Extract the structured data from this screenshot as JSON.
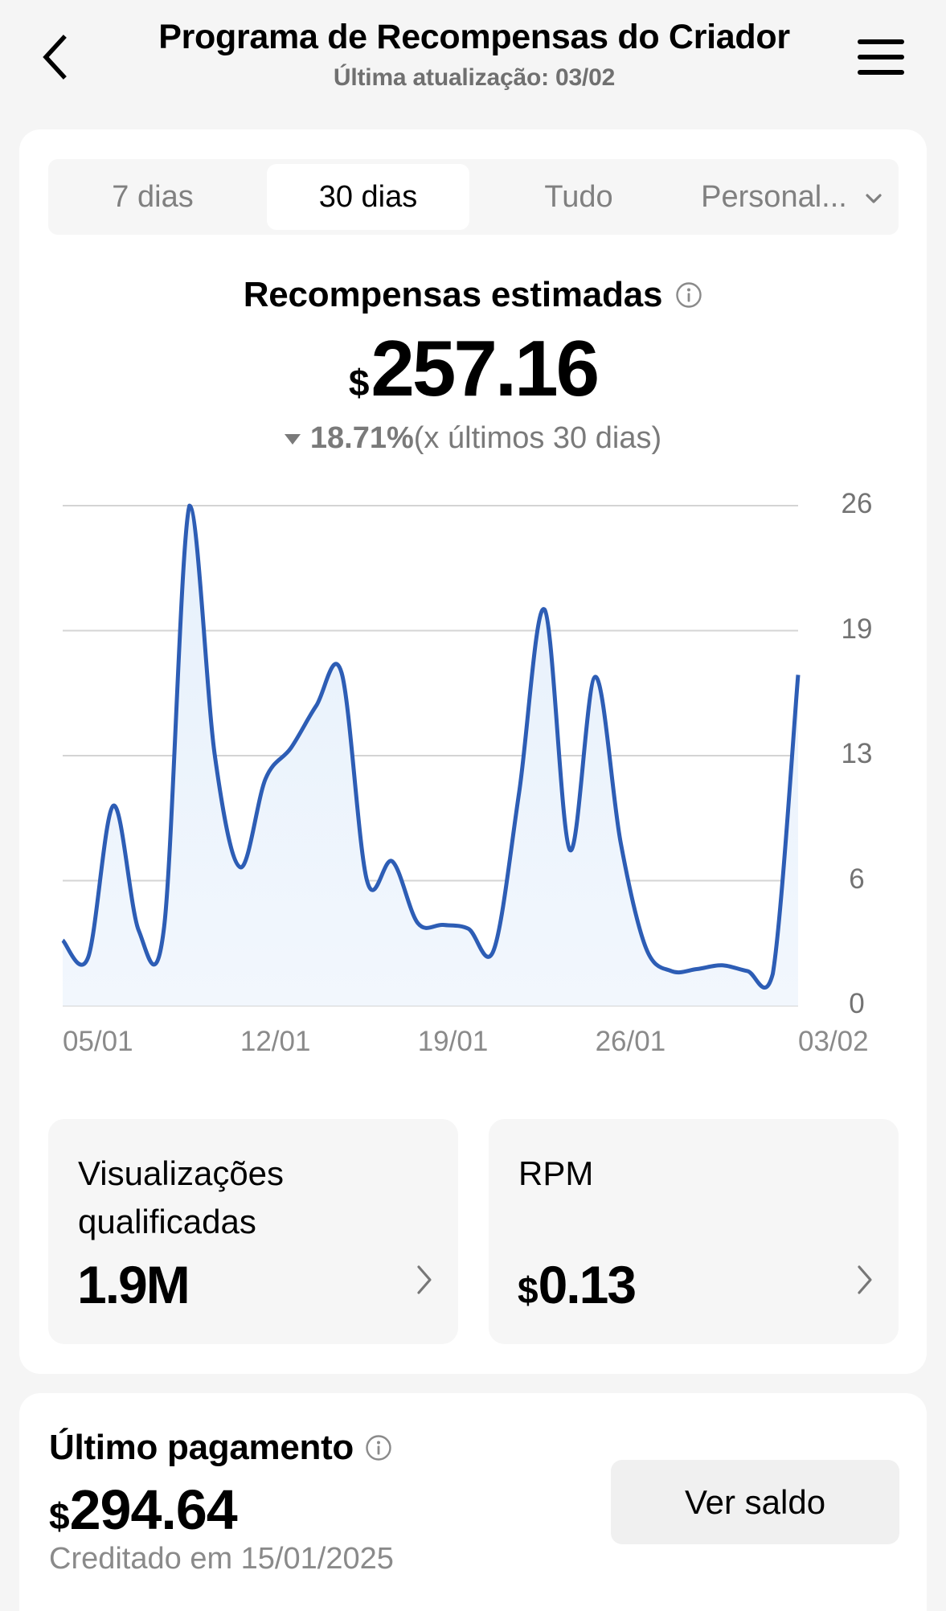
{
  "header": {
    "title": "Programa de Recompensas do Criador",
    "subtitle": "Última atualização: 03/02",
    "back_icon": "chevron-left-icon",
    "menu_icon": "hamburger-menu-icon"
  },
  "tabs": [
    {
      "label": "7 dias",
      "selected": false
    },
    {
      "label": "30 dias",
      "selected": true
    },
    {
      "label": "Tudo",
      "selected": false
    },
    {
      "label": "Personal...",
      "selected": false,
      "icon": "chevron-down-icon"
    }
  ],
  "summary": {
    "title": "Recompensas estimadas",
    "currency": "$",
    "amount": "257.16",
    "change_pct": "18.71%",
    "change_direction": "down",
    "change_context": "(x últimos 30 dias)"
  },
  "chart_data": {
    "type": "area",
    "title": "Recompensas estimadas",
    "xlabel": "",
    "ylabel": "",
    "x_tick_labels": [
      "05/01",
      "12/01",
      "19/01",
      "26/01",
      "03/02"
    ],
    "y_tick_labels": [
      "26",
      "19",
      "13",
      "6",
      "0"
    ],
    "ylim": [
      0,
      26
    ],
    "grid": true,
    "y_axis_position": "right",
    "line_color": "#2d5db5",
    "fill_color": "#eaf3fd",
    "x": [
      "05/01",
      "06/01",
      "07/01",
      "08/01",
      "09/01",
      "10/01",
      "11/01",
      "12/01",
      "13/01",
      "14/01",
      "15/01",
      "16/01",
      "17/01",
      "18/01",
      "19/01",
      "20/01",
      "21/01",
      "22/01",
      "23/01",
      "24/01",
      "25/01",
      "26/01",
      "27/01",
      "28/01",
      "29/01",
      "30/01",
      "31/01",
      "01/02",
      "02/02",
      "03/02"
    ],
    "values": [
      3.4,
      2.5,
      10.4,
      3.9,
      4.1,
      26.0,
      13.0,
      7.2,
      11.8,
      13.4,
      15.6,
      17.3,
      6.5,
      7.5,
      4.3,
      4.2,
      4.0,
      2.9,
      11.1,
      20.6,
      8.1,
      17.1,
      8.5,
      3.0,
      1.8,
      1.9,
      2.1,
      1.8,
      1.65,
      17.2
    ]
  },
  "metrics": [
    {
      "title": "Visualizações qualificadas",
      "currency": "",
      "value": "1.9M"
    },
    {
      "title": "RPM",
      "currency": "$",
      "value": "0.13"
    }
  ],
  "payment": {
    "title": "Último pagamento",
    "currency": "$",
    "amount": "294.64",
    "credited": "Creditado em 15/01/2025",
    "button_label": "Ver saldo"
  },
  "colors": {
    "background": "#f5f5f5",
    "panel": "#ffffff",
    "chart_line": "#2d5db5",
    "muted_text": "#7a7a7a"
  }
}
